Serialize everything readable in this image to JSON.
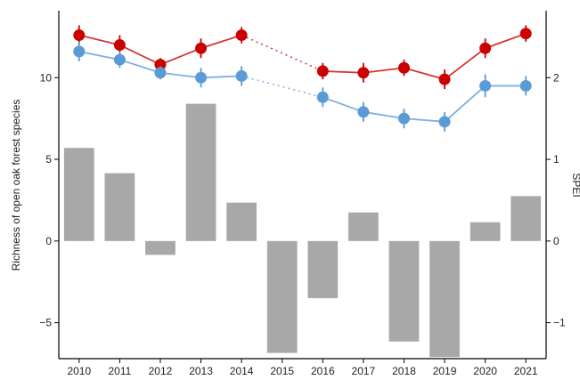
{
  "chart_data": {
    "type": "bar+line",
    "categories": [
      "2010",
      "2011",
      "2012",
      "2013",
      "2014",
      "2015",
      "2016",
      "2017",
      "2018",
      "2019",
      "2020",
      "2021"
    ],
    "ylabel": "Richness of open oak forest species",
    "y2label": "SPEI",
    "ylim": [
      -7.2,
      14.1
    ],
    "yticks": [
      -5,
      0,
      5,
      10
    ],
    "y2lim": [
      -1.44,
      2.82
    ],
    "y2ticks": [
      -1,
      0,
      1,
      2
    ],
    "bars": {
      "axis": "right",
      "color": "#a8a8a8",
      "values": [
        1.14,
        0.83,
        -0.17,
        1.68,
        0.47,
        -1.37,
        -0.7,
        0.35,
        -1.23,
        -1.42,
        0.23,
        0.55
      ]
    },
    "series": [
      {
        "color": "#cc0000",
        "values": [
          12.6,
          12.0,
          10.8,
          11.8,
          12.6,
          null,
          10.4,
          10.3,
          10.6,
          9.9,
          11.8,
          12.7
        ],
        "errors": [
          0.6,
          0.6,
          0.4,
          0.6,
          0.5,
          null,
          0.5,
          0.6,
          0.5,
          0.6,
          0.6,
          0.5
        ]
      },
      {
        "color": "#5b9bd5",
        "values": [
          11.6,
          11.1,
          10.3,
          10.0,
          10.1,
          null,
          8.8,
          7.9,
          7.5,
          7.3,
          9.5,
          9.5
        ],
        "errors": [
          0.6,
          0.5,
          0.4,
          0.6,
          0.6,
          null,
          0.6,
          0.6,
          0.6,
          0.6,
          0.7,
          0.6
        ]
      }
    ]
  }
}
